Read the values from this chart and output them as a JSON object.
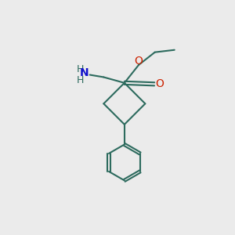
{
  "bg_color": "#ebebeb",
  "bond_color": "#2d6b5e",
  "bond_width": 1.5,
  "o_color": "#cc2200",
  "n_color": "#1111cc",
  "figsize": [
    3.0,
    3.0
  ],
  "dpi": 100,
  "xlim": [
    0,
    10
  ],
  "ylim": [
    0,
    10
  ]
}
